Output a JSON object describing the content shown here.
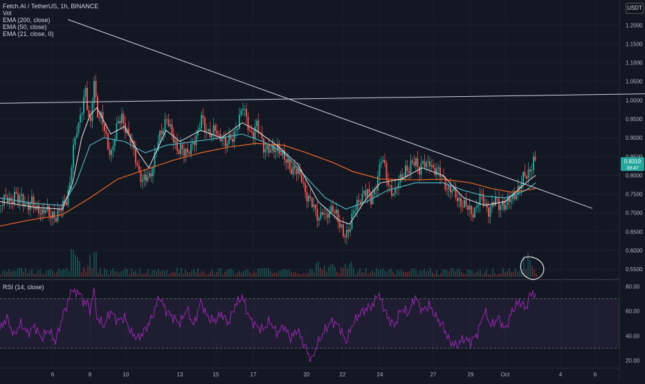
{
  "header": {
    "title": "Fetch.AI / TetherUS, 1h, BINANCE",
    "indicators": [
      "Vol",
      "EMA (200, close)",
      "EMA (50, close)",
      "EMA (21, close, 0)"
    ],
    "currency": "USDT"
  },
  "colors": {
    "background": "#131722",
    "up": "#26a69a",
    "down": "#ef5350",
    "ema200": "#f0682a",
    "ema50": "#4fb3bf",
    "ema21": "#e8e8e8",
    "rsi": "#9c27b0",
    "rsi_band": "#7e57c2"
  },
  "chart_data": [
    {
      "type": "candlestick",
      "title": "Fetch.AI / TetherUS, 1h, BINANCE",
      "x_ticks": [
        "6",
        "8",
        "10",
        "13",
        "15",
        "17",
        "20",
        "22",
        "24",
        "27",
        "29",
        "Oct",
        "4",
        "6"
      ],
      "y_ticks": [
        "1.2000",
        "1.1500",
        "1.1000",
        "1.0500",
        "1.0000",
        "0.9500",
        "0.9000",
        "0.8500",
        "0.8000",
        "0.7500",
        "0.7000",
        "0.6500",
        "0.6000",
        "0.5500"
      ],
      "ylim": [
        0.53,
        1.23
      ],
      "last_price": "0.8319",
      "last_price_sub": "39:47",
      "price_path": [
        [
          0,
          0.72
        ],
        [
          5,
          0.73
        ],
        [
          10,
          0.74
        ],
        [
          15,
          0.735
        ],
        [
          20,
          0.75
        ],
        [
          25,
          0.73
        ],
        [
          30,
          0.74
        ],
        [
          35,
          0.73
        ],
        [
          40,
          0.72
        ],
        [
          45,
          0.725
        ],
        [
          50,
          0.71
        ],
        [
          55,
          0.715
        ],
        [
          60,
          0.7
        ],
        [
          65,
          0.705
        ],
        [
          70,
          0.695
        ],
        [
          75,
          0.7
        ],
        [
          80,
          0.69
        ],
        [
          85,
          0.7
        ],
        [
          90,
          0.72
        ],
        [
          95,
          0.74
        ],
        [
          100,
          0.78
        ],
        [
          104,
          0.86
        ],
        [
          107,
          0.88
        ],
        [
          110,
          0.92
        ],
        [
          114,
          0.95
        ],
        [
          118,
          0.99
        ],
        [
          122,
          1.03
        ],
        [
          126,
          0.96
        ],
        [
          130,
          0.93
        ],
        [
          133,
          1.02
        ],
        [
          136,
          1.08
        ],
        [
          138,
          0.98
        ],
        [
          141,
          0.96
        ],
        [
          145,
          0.95
        ],
        [
          150,
          0.92
        ],
        [
          155,
          0.88
        ],
        [
          160,
          0.86
        ],
        [
          165,
          0.9
        ],
        [
          170,
          0.94
        ],
        [
          175,
          0.96
        ],
        [
          180,
          0.93
        ],
        [
          185,
          0.9
        ],
        [
          190,
          0.88
        ],
        [
          195,
          0.85
        ],
        [
          200,
          0.81
        ],
        [
          205,
          0.78
        ],
        [
          210,
          0.79
        ],
        [
          215,
          0.8
        ],
        [
          220,
          0.83
        ],
        [
          225,
          0.87
        ],
        [
          230,
          0.9
        ],
        [
          235,
          0.93
        ],
        [
          240,
          0.96
        ],
        [
          245,
          0.92
        ],
        [
          250,
          0.89
        ],
        [
          255,
          0.87
        ],
        [
          260,
          0.88
        ],
        [
          265,
          0.86
        ],
        [
          270,
          0.85
        ],
        [
          275,
          0.88
        ],
        [
          280,
          0.9
        ],
        [
          285,
          0.91
        ],
        [
          290,
          0.95
        ],
        [
          295,
          0.93
        ],
        [
          300,
          0.92
        ],
        [
          305,
          0.91
        ],
        [
          310,
          0.92
        ],
        [
          315,
          0.9
        ],
        [
          320,
          0.91
        ],
        [
          325,
          0.88
        ],
        [
          330,
          0.89
        ],
        [
          335,
          0.9
        ],
        [
          340,
          0.93
        ],
        [
          345,
          0.95
        ],
        [
          350,
          0.98
        ],
        [
          353,
          0.96
        ],
        [
          356,
          0.95
        ],
        [
          360,
          0.92
        ],
        [
          365,
          0.91
        ],
        [
          370,
          0.93
        ],
        [
          375,
          0.91
        ],
        [
          380,
          0.88
        ],
        [
          385,
          0.87
        ],
        [
          390,
          0.86
        ],
        [
          395,
          0.87
        ],
        [
          400,
          0.88
        ],
        [
          405,
          0.86
        ],
        [
          410,
          0.84
        ],
        [
          415,
          0.83
        ],
        [
          420,
          0.82
        ],
        [
          425,
          0.82
        ],
        [
          430,
          0.8
        ],
        [
          435,
          0.79
        ],
        [
          440,
          0.76
        ],
        [
          445,
          0.74
        ],
        [
          450,
          0.72
        ],
        [
          455,
          0.7
        ],
        [
          460,
          0.69
        ],
        [
          465,
          0.71
        ],
        [
          470,
          0.68
        ],
        [
          475,
          0.7
        ],
        [
          480,
          0.72
        ],
        [
          485,
          0.7
        ],
        [
          490,
          0.66
        ],
        [
          495,
          0.64
        ],
        [
          500,
          0.65
        ],
        [
          505,
          0.67
        ],
        [
          510,
          0.7
        ],
        [
          515,
          0.72
        ],
        [
          520,
          0.74
        ],
        [
          525,
          0.76
        ],
        [
          530,
          0.75
        ],
        [
          535,
          0.73
        ],
        [
          540,
          0.76
        ],
        [
          545,
          0.8
        ],
        [
          550,
          0.84
        ],
        [
          553,
          0.83
        ],
        [
          556,
          0.81
        ],
        [
          560,
          0.78
        ],
        [
          565,
          0.76
        ],
        [
          570,
          0.75
        ],
        [
          575,
          0.78
        ],
        [
          580,
          0.8
        ],
        [
          585,
          0.82
        ],
        [
          590,
          0.81
        ],
        [
          595,
          0.83
        ],
        [
          600,
          0.84
        ],
        [
          605,
          0.82
        ],
        [
          610,
          0.83
        ],
        [
          615,
          0.82
        ],
        [
          620,
          0.84
        ],
        [
          625,
          0.82
        ],
        [
          630,
          0.81
        ],
        [
          635,
          0.8
        ],
        [
          640,
          0.79
        ],
        [
          645,
          0.77
        ],
        [
          650,
          0.76
        ],
        [
          655,
          0.75
        ],
        [
          660,
          0.74
        ],
        [
          665,
          0.73
        ],
        [
          670,
          0.72
        ],
        [
          675,
          0.71
        ],
        [
          680,
          0.7
        ],
        [
          685,
          0.71
        ],
        [
          690,
          0.73
        ],
        [
          695,
          0.74
        ],
        [
          700,
          0.72
        ],
        [
          705,
          0.71
        ],
        [
          710,
          0.72
        ],
        [
          715,
          0.73
        ],
        [
          720,
          0.72
        ],
        [
          725,
          0.73
        ],
        [
          730,
          0.72
        ],
        [
          735,
          0.73
        ],
        [
          740,
          0.74
        ],
        [
          745,
          0.76
        ],
        [
          750,
          0.77
        ],
        [
          755,
          0.79
        ],
        [
          760,
          0.8
        ],
        [
          765,
          0.82
        ],
        [
          770,
          0.84
        ],
        [
          774,
          0.83
        ]
      ],
      "ema21": [
        [
          0,
          0.73
        ],
        [
          50,
          0.715
        ],
        [
          90,
          0.71
        ],
        [
          105,
          0.78
        ],
        [
          118,
          0.9
        ],
        [
          130,
          0.96
        ],
        [
          140,
          0.98
        ],
        [
          160,
          0.91
        ],
        [
          180,
          0.93
        ],
        [
          200,
          0.86
        ],
        [
          215,
          0.82
        ],
        [
          240,
          0.92
        ],
        [
          260,
          0.89
        ],
        [
          290,
          0.92
        ],
        [
          320,
          0.9
        ],
        [
          350,
          0.94
        ],
        [
          370,
          0.92
        ],
        [
          400,
          0.88
        ],
        [
          430,
          0.83
        ],
        [
          460,
          0.73
        ],
        [
          490,
          0.68
        ],
        [
          505,
          0.67
        ],
        [
          530,
          0.74
        ],
        [
          550,
          0.78
        ],
        [
          580,
          0.79
        ],
        [
          610,
          0.82
        ],
        [
          640,
          0.8
        ],
        [
          670,
          0.74
        ],
        [
          700,
          0.72
        ],
        [
          730,
          0.73
        ],
        [
          760,
          0.78
        ],
        [
          774,
          0.8
        ]
      ],
      "ema50": [
        [
          0,
          0.74
        ],
        [
          50,
          0.725
        ],
        [
          90,
          0.72
        ],
        [
          110,
          0.78
        ],
        [
          130,
          0.88
        ],
        [
          150,
          0.9
        ],
        [
          180,
          0.89
        ],
        [
          210,
          0.86
        ],
        [
          240,
          0.88
        ],
        [
          280,
          0.89
        ],
        [
          320,
          0.9
        ],
        [
          350,
          0.91
        ],
        [
          380,
          0.89
        ],
        [
          410,
          0.86
        ],
        [
          440,
          0.8
        ],
        [
          470,
          0.74
        ],
        [
          500,
          0.71
        ],
        [
          530,
          0.73
        ],
        [
          560,
          0.76
        ],
        [
          600,
          0.78
        ],
        [
          640,
          0.78
        ],
        [
          670,
          0.76
        ],
        [
          700,
          0.745
        ],
        [
          730,
          0.74
        ],
        [
          760,
          0.76
        ],
        [
          774,
          0.78
        ]
      ],
      "ema200": [
        [
          0,
          0.665
        ],
        [
          40,
          0.68
        ],
        [
          90,
          0.695
        ],
        [
          130,
          0.74
        ],
        [
          170,
          0.79
        ],
        [
          210,
          0.815
        ],
        [
          250,
          0.84
        ],
        [
          290,
          0.86
        ],
        [
          330,
          0.875
        ],
        [
          370,
          0.885
        ],
        [
          410,
          0.88
        ],
        [
          440,
          0.862
        ],
        [
          480,
          0.835
        ],
        [
          510,
          0.81
        ],
        [
          550,
          0.79
        ],
        [
          600,
          0.788
        ],
        [
          640,
          0.79
        ],
        [
          680,
          0.78
        ],
        [
          710,
          0.765
        ],
        [
          740,
          0.755
        ],
        [
          774,
          0.765
        ]
      ],
      "trendlines": [
        {
          "from": [
            98,
            1.215
          ],
          "to": [
            856,
            0.712
          ]
        },
        {
          "from": [
            0,
            0.992
          ],
          "to": [
            932,
            1.017
          ]
        }
      ]
    },
    {
      "type": "line",
      "title": "RSI (14, close)",
      "y_ticks": [
        "80.00",
        "60.00",
        "40.00",
        "20.00"
      ],
      "ylim": [
        15,
        85
      ],
      "bands": [
        70,
        30
      ],
      "series": [
        {
          "values": [
            [
              0,
              45
            ],
            [
              10,
              55
            ],
            [
              20,
              40
            ],
            [
              30,
              50
            ],
            [
              40,
              42
            ],
            [
              50,
              48
            ],
            [
              60,
              38
            ],
            [
              70,
              45
            ],
            [
              80,
              35
            ],
            [
              90,
              55
            ],
            [
              100,
              70
            ],
            [
              105,
              80
            ],
            [
              110,
              72
            ],
            [
              115,
              78
            ],
            [
              120,
              65
            ],
            [
              125,
              70
            ],
            [
              130,
              58
            ],
            [
              135,
              80
            ],
            [
              140,
              55
            ],
            [
              150,
              48
            ],
            [
              160,
              60
            ],
            [
              170,
              52
            ],
            [
              180,
              55
            ],
            [
              190,
              42
            ],
            [
              200,
              38
            ],
            [
              210,
              45
            ],
            [
              220,
              55
            ],
            [
              230,
              72
            ],
            [
              240,
              60
            ],
            [
              250,
              55
            ],
            [
              260,
              50
            ],
            [
              270,
              62
            ],
            [
              280,
              48
            ],
            [
              290,
              68
            ],
            [
              300,
              55
            ],
            [
              310,
              52
            ],
            [
              320,
              58
            ],
            [
              330,
              50
            ],
            [
              340,
              65
            ],
            [
              350,
              72
            ],
            [
              360,
              55
            ],
            [
              370,
              48
            ],
            [
              380,
              45
            ],
            [
              390,
              52
            ],
            [
              400,
              42
            ],
            [
              410,
              48
            ],
            [
              420,
              38
            ],
            [
              430,
              45
            ],
            [
              440,
              32
            ],
            [
              450,
              20
            ],
            [
              460,
              35
            ],
            [
              470,
              45
            ],
            [
              480,
              52
            ],
            [
              490,
              48
            ],
            [
              500,
              35
            ],
            [
              510,
              50
            ],
            [
              520,
              58
            ],
            [
              530,
              62
            ],
            [
              540,
              65
            ],
            [
              545,
              75
            ],
            [
              550,
              70
            ],
            [
              560,
              55
            ],
            [
              570,
              48
            ],
            [
              580,
              62
            ],
            [
              590,
              58
            ],
            [
              600,
              72
            ],
            [
              610,
              60
            ],
            [
              620,
              65
            ],
            [
              630,
              55
            ],
            [
              640,
              48
            ],
            [
              650,
              35
            ],
            [
              660,
              32
            ],
            [
              670,
              38
            ],
            [
              680,
              35
            ],
            [
              690,
              42
            ],
            [
              700,
              60
            ],
            [
              710,
              48
            ],
            [
              720,
              55
            ],
            [
              730,
              45
            ],
            [
              740,
              60
            ],
            [
              750,
              68
            ],
            [
              760,
              62
            ],
            [
              765,
              72
            ],
            [
              770,
              76
            ],
            [
              774,
              70
            ]
          ]
        }
      ]
    }
  ]
}
